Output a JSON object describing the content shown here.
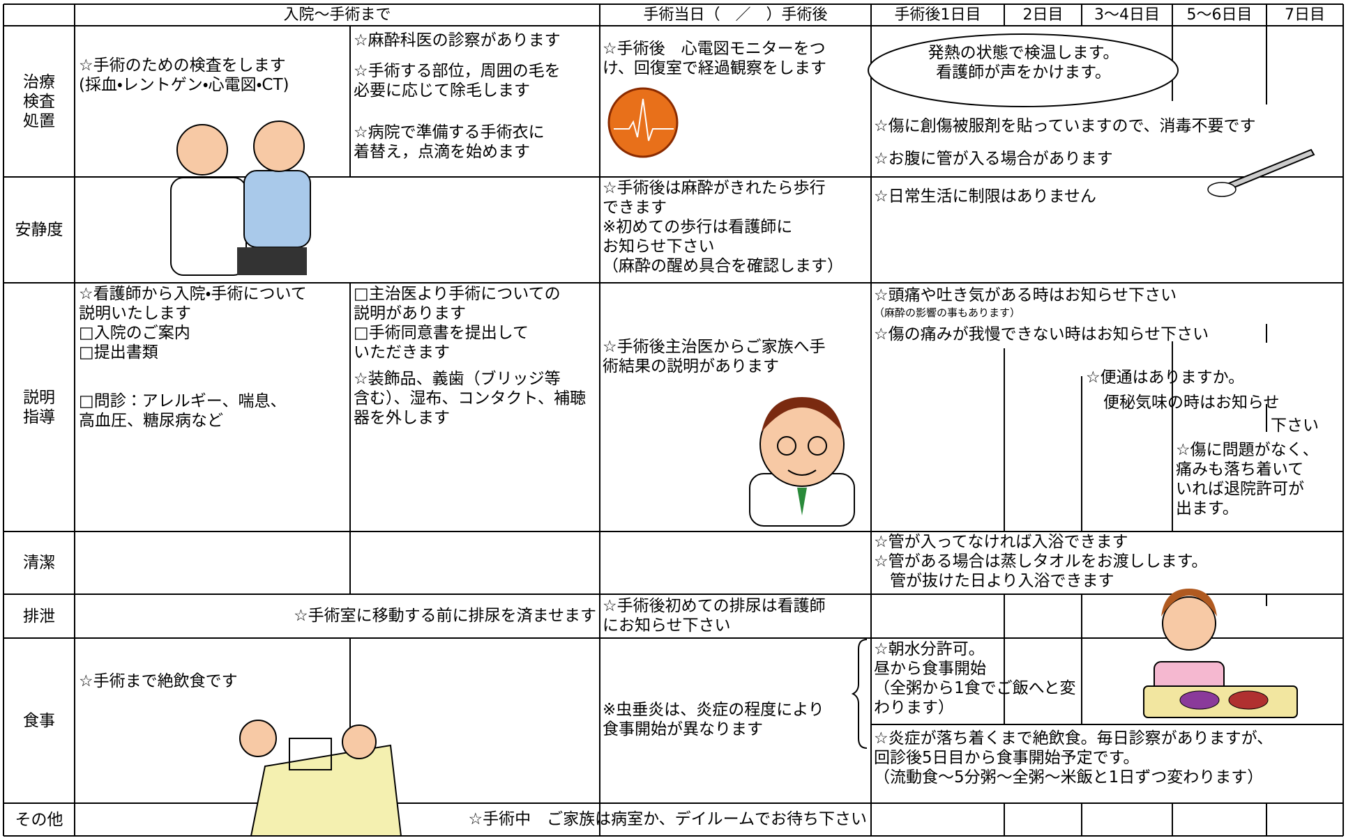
{
  "header": {
    "cols": [
      "入院～手術まで",
      "手術当日（　／　）手術後",
      "手術後1日目",
      "2日目",
      "3～4日目",
      "5～6日目",
      "7日目"
    ]
  },
  "rows": [
    {
      "label": "治療\n検査\n処置",
      "texts": [
        "☆手術のための検査をします\n(採血・レントゲン・心電図・CT)",
        "☆麻酔科医の診察があります",
        "☆手術する部位，周囲の毛を\n必要に応じて除毛します",
        "☆病院で準備する手術衣に\n着替え，点滴を始めます",
        "☆手術後　心電図モニターをつ\nけ、回復室で経過観察をします",
        "発熱の状態で検温します。\n看護師が声をかけます。",
        "☆傷に創傷被服剤を貼っていますので、消毒不要です",
        "☆お腹に管が入る場合があります"
      ]
    },
    {
      "label": "安静度",
      "texts": [
        "☆手術後は麻酔がきれたら歩行\nできます\n※初めての歩行は看護師に\nお知らせ下さい\n（麻酔の醒め具合を確認します）",
        "☆日常生活に制限はありません"
      ]
    },
    {
      "label": "説明\n指導",
      "texts": [
        "☆看護師から入院・手術について\n説明いたします\n□入院のご案内\n□提出書類",
        "□問診：アレルギー、喘息、\n高血圧、糖尿病など",
        "□主治医より手術についての\n説明があります\n□手術同意書を提出して\nいただきます",
        "☆装飾品、義歯（ブリッジ等\n含む）、湿布、コンタクト、補聴\n器を外します",
        "☆手術後主治医からご家族へ手\n術結果の説明があります",
        "☆頭痛や吐き気がある時はお知らせ下さい",
        "（麻酔の影響の事もあります）",
        "☆傷の痛みが我慢できない時はお知らせ下さい",
        "☆便通はありますか。",
        "便秘気味の時はお知らせ",
        "下さい",
        "☆傷に問題がなく、\n痛みも落ち着いて\nいれば退院許可が\n出ます。"
      ]
    },
    {
      "label": "清潔",
      "texts": [
        "☆管が入ってなければ入浴できます\n☆管がある場合は蒸しタオルをお渡しします。\n　管が抜けた日より入浴できます"
      ]
    },
    {
      "label": "排泄",
      "texts": [
        "☆手術室に移動する前に排尿を済ませます",
        "☆手術後初めての排尿は看護師\nにお知らせ下さい"
      ]
    },
    {
      "label": "食事",
      "texts": [
        "☆手術まで絶飲食です",
        "※虫垂炎は、炎症の程度により\n食事開始が異なります",
        "☆朝水分許可。\n昼から食事開始\n（全粥から1食でご飯へと変\nわります）",
        "☆炎症が落ち着くまで絶飲食。毎日診察がありますが、\n回診後5日目から食事開始予定です。\n（流動食～5分粥～全粥～米飯と1日ずつ変わります）"
      ]
    },
    {
      "label": "その他",
      "texts": [
        "☆手術中　ご家族は病室か、デイルームでお待ち下さい"
      ]
    }
  ]
}
